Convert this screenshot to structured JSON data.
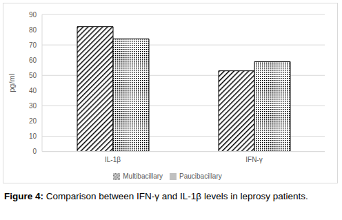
{
  "chart_data": {
    "type": "bar",
    "title": "Figure 4: Comparison between IFN-γ and IL-1β levels in leprosy patients.",
    "ylabel": "pg/ml",
    "categories": [
      "IL-1β",
      "IFN-γ"
    ],
    "series": [
      {
        "name": "Multibacillary",
        "color": "#000000",
        "values": [
          82,
          53
        ]
      },
      {
        "name": "Paucibacillary",
        "color": "#000000",
        "values": [
          74,
          59
        ]
      }
    ],
    "ylim": [
      0,
      90
    ],
    "yticks": [
      0,
      10,
      20,
      30,
      40,
      50,
      60,
      70,
      80,
      90
    ],
    "grid": true,
    "legend": "bottom"
  }
}
